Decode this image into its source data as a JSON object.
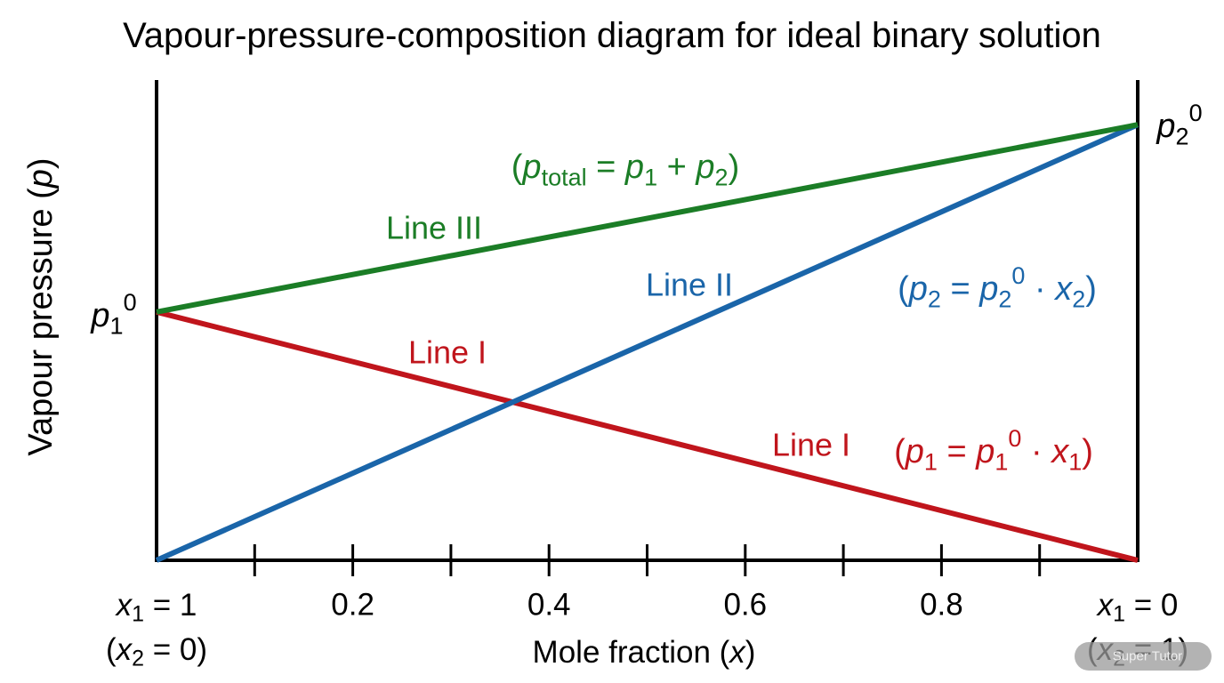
{
  "chart_data": {
    "type": "line",
    "title": "Vapour-pressure-composition diagram for ideal binary solution",
    "xlabel": [
      {
        "text": "Mole fraction (",
        "style": "normal"
      },
      {
        "text": "x",
        "style": "italic"
      },
      {
        "text": ")",
        "style": "normal"
      }
    ],
    "ylabel": [
      {
        "text": "Vapour pressure (",
        "style": "normal"
      },
      {
        "text": "p",
        "style": "italic"
      },
      {
        "text": ")",
        "style": "normal"
      }
    ],
    "x": [
      0,
      1
    ],
    "xlim": [
      0,
      1
    ],
    "ylim": [
      0,
      1
    ],
    "xticks": [
      {
        "value": 0,
        "label": [
          [
            {
              "text": "x",
              "style": "italic"
            },
            {
              "text": "1",
              "style": "sub"
            },
            {
              "text": " = 1",
              "style": "normal"
            }
          ],
          [
            {
              "text": "(",
              "style": "normal"
            },
            {
              "text": "x",
              "style": "italic"
            },
            {
              "text": "2",
              "style": "sub"
            },
            {
              "text": " = 0)",
              "style": "normal"
            }
          ]
        ]
      },
      {
        "value": 0.1,
        "label": null
      },
      0.2,
      {
        "value": 0.3,
        "label": null
      },
      0.4,
      {
        "value": 0.5,
        "label": null
      },
      0.6,
      {
        "value": 0.7,
        "label": null
      },
      0.8,
      {
        "value": 0.9,
        "label": null
      },
      {
        "value": 1,
        "label": [
          [
            {
              "text": "x",
              "style": "italic"
            },
            {
              "text": "1",
              "style": "sub"
            },
            {
              "text": " = 0",
              "style": "normal"
            }
          ],
          [
            {
              "text": "(",
              "style": "normal"
            },
            {
              "text": "x",
              "style": "italic"
            },
            {
              "text": "2",
              "style": "sub"
            },
            {
              "text": " = 1)",
              "style": "normal"
            }
          ]
        ]
      }
    ],
    "series": [
      {
        "name": "Line I",
        "color": "#c0151c",
        "values": [
          0.517,
          0
        ]
      },
      {
        "name": "Line II",
        "color": "#1a65a9",
        "values": [
          0,
          0.907
        ]
      },
      {
        "name": "Line III",
        "color": "#1b7d26",
        "values": [
          0.517,
          0.907
        ]
      }
    ],
    "annotations": [
      [
        {
          "text": "(",
          "style": "normal"
        },
        {
          "text": "p",
          "style": "italic"
        },
        {
          "text": "1",
          "style": "sub"
        },
        {
          "text": " = ",
          "style": "normal"
        },
        {
          "text": "p",
          "style": "italic"
        },
        {
          "text": "1",
          "style": "sub"
        },
        {
          "text": "0",
          "style": "sup"
        },
        {
          "text": " · ",
          "style": "normal"
        },
        {
          "text": "x",
          "style": "italic"
        },
        {
          "text": "1",
          "style": "sub"
        },
        {
          "text": ")",
          "style": "normal"
        }
      ],
      [
        {
          "text": "(",
          "style": "normal"
        },
        {
          "text": "p",
          "style": "italic"
        },
        {
          "text": "2",
          "style": "sub"
        },
        {
          "text": " = ",
          "style": "normal"
        },
        {
          "text": "p",
          "style": "italic"
        },
        {
          "text": "2",
          "style": "sub"
        },
        {
          "text": "0",
          "style": "sup"
        },
        {
          "text": " · ",
          "style": "normal"
        },
        {
          "text": "x",
          "style": "italic"
        },
        {
          "text": "2",
          "style": "sub"
        },
        {
          "text": ")",
          "style": "normal"
        }
      ],
      [
        {
          "text": "(",
          "style": "normal"
        },
        {
          "text": "p",
          "style": "italic"
        },
        {
          "text": "total",
          "style": "sub"
        },
        {
          "text": " = ",
          "style": "normal"
        },
        {
          "text": "p",
          "style": "italic"
        },
        {
          "text": "1",
          "style": "sub"
        },
        {
          "text": " + ",
          "style": "normal"
        },
        {
          "text": "p",
          "style": "italic"
        },
        {
          "text": "2",
          "style": "sub"
        },
        {
          "text": ")",
          "style": "normal"
        }
      ]
    ],
    "endpoint_labels": [
      [
        {
          "text": "p",
          "style": "italic"
        },
        {
          "text": "1",
          "style": "sub"
        },
        {
          "text": "0",
          "style": "sup"
        }
      ],
      [
        {
          "text": "p",
          "style": "italic"
        },
        {
          "text": "2",
          "style": "sub"
        },
        {
          "text": "0",
          "style": "sup"
        }
      ]
    ],
    "watermark": "Super Tutor"
  }
}
